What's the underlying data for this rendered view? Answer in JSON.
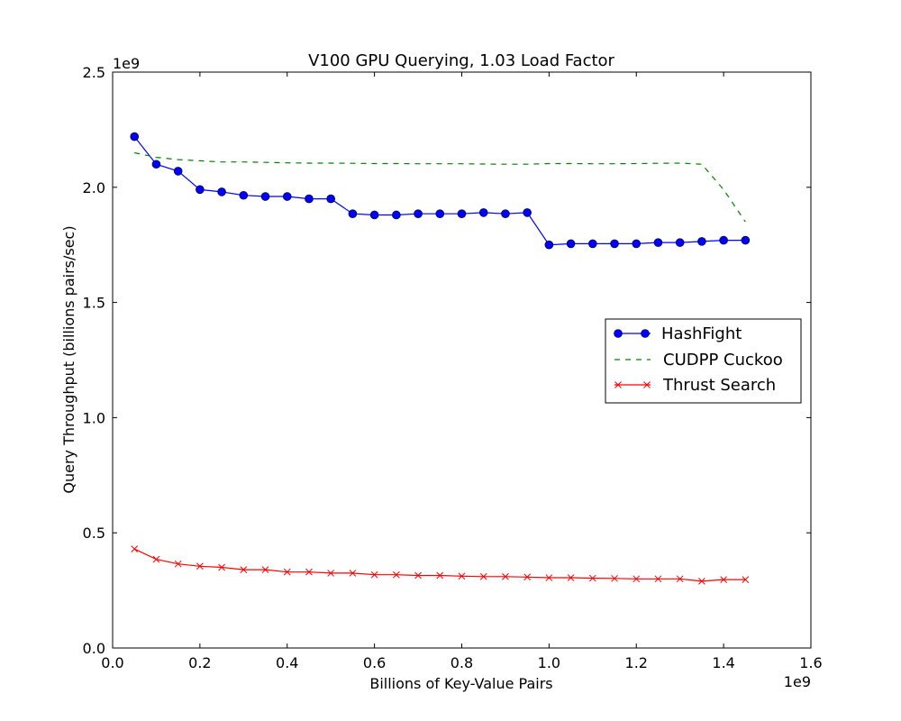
{
  "chart_data": {
    "type": "line",
    "title": "V100 GPU Querying, 1.03 Load Factor",
    "xlabel": "Billions of Key-Value Pairs",
    "ylabel": "Query Throughput (billions pairs/sec)",
    "x_offset_label": "1e9",
    "y_offset_label": "1e9",
    "xlim": [
      0.0,
      1.6
    ],
    "ylim": [
      0.0,
      2.5
    ],
    "xticks": [
      "0.0",
      "0.2",
      "0.4",
      "0.6",
      "0.8",
      "1.0",
      "1.2",
      "1.4",
      "1.6"
    ],
    "yticks": [
      "0.0",
      "0.5",
      "1.0",
      "1.5",
      "2.0",
      "2.5"
    ],
    "legend_position": "center-right",
    "x": [
      0.05,
      0.1,
      0.15,
      0.2,
      0.25,
      0.3,
      0.35,
      0.4,
      0.45,
      0.5,
      0.55,
      0.6,
      0.65,
      0.7,
      0.75,
      0.8,
      0.85,
      0.9,
      0.95,
      1.0,
      1.05,
      1.1,
      1.15,
      1.2,
      1.25,
      1.3,
      1.35,
      1.4,
      1.45
    ],
    "series": [
      {
        "name": "HashFight",
        "color": "#0000ff",
        "style": "solid",
        "marker": "circle",
        "values": [
          2.22,
          2.1,
          2.07,
          1.99,
          1.98,
          1.965,
          1.96,
          1.96,
          1.95,
          1.95,
          1.885,
          1.88,
          1.88,
          1.885,
          1.885,
          1.885,
          1.89,
          1.885,
          1.89,
          1.75,
          1.755,
          1.755,
          1.755,
          1.755,
          1.76,
          1.76,
          1.765,
          1.77,
          1.77
        ]
      },
      {
        "name": "CUDPP Cuckoo",
        "color": "#008000",
        "style": "dashed",
        "marker": "none",
        "values": [
          2.15,
          2.13,
          2.12,
          2.115,
          2.11,
          2.11,
          2.108,
          2.106,
          2.105,
          2.105,
          2.104,
          2.103,
          2.103,
          2.102,
          2.102,
          2.102,
          2.101,
          2.1,
          2.1,
          2.103,
          2.103,
          2.102,
          2.102,
          2.103,
          2.104,
          2.105,
          2.1,
          1.99,
          1.85
        ]
      },
      {
        "name": "Thrust Search",
        "color": "#ff0000",
        "style": "solid",
        "marker": "x",
        "values": [
          0.43,
          0.385,
          0.365,
          0.355,
          0.35,
          0.34,
          0.34,
          0.33,
          0.33,
          0.325,
          0.325,
          0.318,
          0.318,
          0.315,
          0.315,
          0.312,
          0.31,
          0.31,
          0.308,
          0.305,
          0.305,
          0.303,
          0.302,
          0.3,
          0.3,
          0.3,
          0.29,
          0.297,
          0.297
        ]
      }
    ]
  }
}
